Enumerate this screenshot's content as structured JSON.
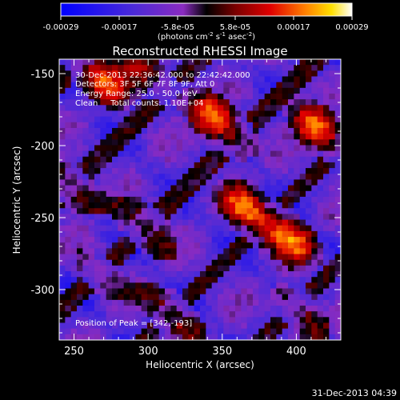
{
  "colorbar": {
    "ticks": [
      "-0.00029",
      "-0.00017",
      "-5.8e-05",
      "5.8e-05",
      "0.00017",
      "0.00029"
    ],
    "units_main": "(photons cm",
    "units_exp1": "-2",
    "units_mid": " s",
    "units_exp2": "-1",
    "units_tail": " asec",
    "units_exp3": "-2",
    "units_close": ")"
  },
  "chart_data": {
    "type": "heatmap",
    "title": "Reconstructed RHESSI Image",
    "xlabel": "Heliocentric X (arcsec)",
    "ylabel": "Heliocentric Y (arcsec)",
    "xlim": [
      240,
      430
    ],
    "ylim": [
      -335,
      -140
    ],
    "x_ticks": [
      250,
      300,
      350,
      400
    ],
    "y_ticks": [
      -150,
      -200,
      -250,
      -300
    ],
    "x_tick_labels": [
      "250",
      "300",
      "350",
      "400"
    ],
    "y_tick_labels": [
      "-150",
      "-200",
      "-250",
      "-300"
    ],
    "color_range": [
      -0.00029,
      0.00029
    ],
    "grid": false,
    "peak_position": [
      342,
      -193
    ],
    "bright_sources": [
      {
        "x": 268,
        "y": -153,
        "amp": 0.85
      },
      {
        "x": 350,
        "y": -185,
        "amp": 1.0
      },
      {
        "x": 418,
        "y": -190,
        "amp": 0.9
      },
      {
        "x": 370,
        "y": -248,
        "amp": 0.95
      },
      {
        "x": 397,
        "y": -265,
        "amp": 0.8
      },
      {
        "x": 300,
        "y": -258,
        "amp": 0.65
      },
      {
        "x": 248,
        "y": -228,
        "amp": 0.6
      },
      {
        "x": 318,
        "y": -320,
        "amp": 0.7
      },
      {
        "x": 268,
        "y": -290,
        "amp": 0.45
      },
      {
        "x": 405,
        "y": -318,
        "amp": 0.55
      },
      {
        "x": 300,
        "y": -150,
        "amp": 0.5
      }
    ],
    "annotations": [
      "30-Dec-2013 22:36:42.000 to 22:42:42.000",
      "Detectors: 3F 5F 6F 7F 8F 9F, Att 0",
      "Energy Range: 25.0 - 50.0 keV",
      "Clean     Total counts: 1.10E+04",
      "Position of Peak = [342,-193]"
    ]
  },
  "footer": {
    "timestamp": "31-Dec-2013 04:39"
  }
}
